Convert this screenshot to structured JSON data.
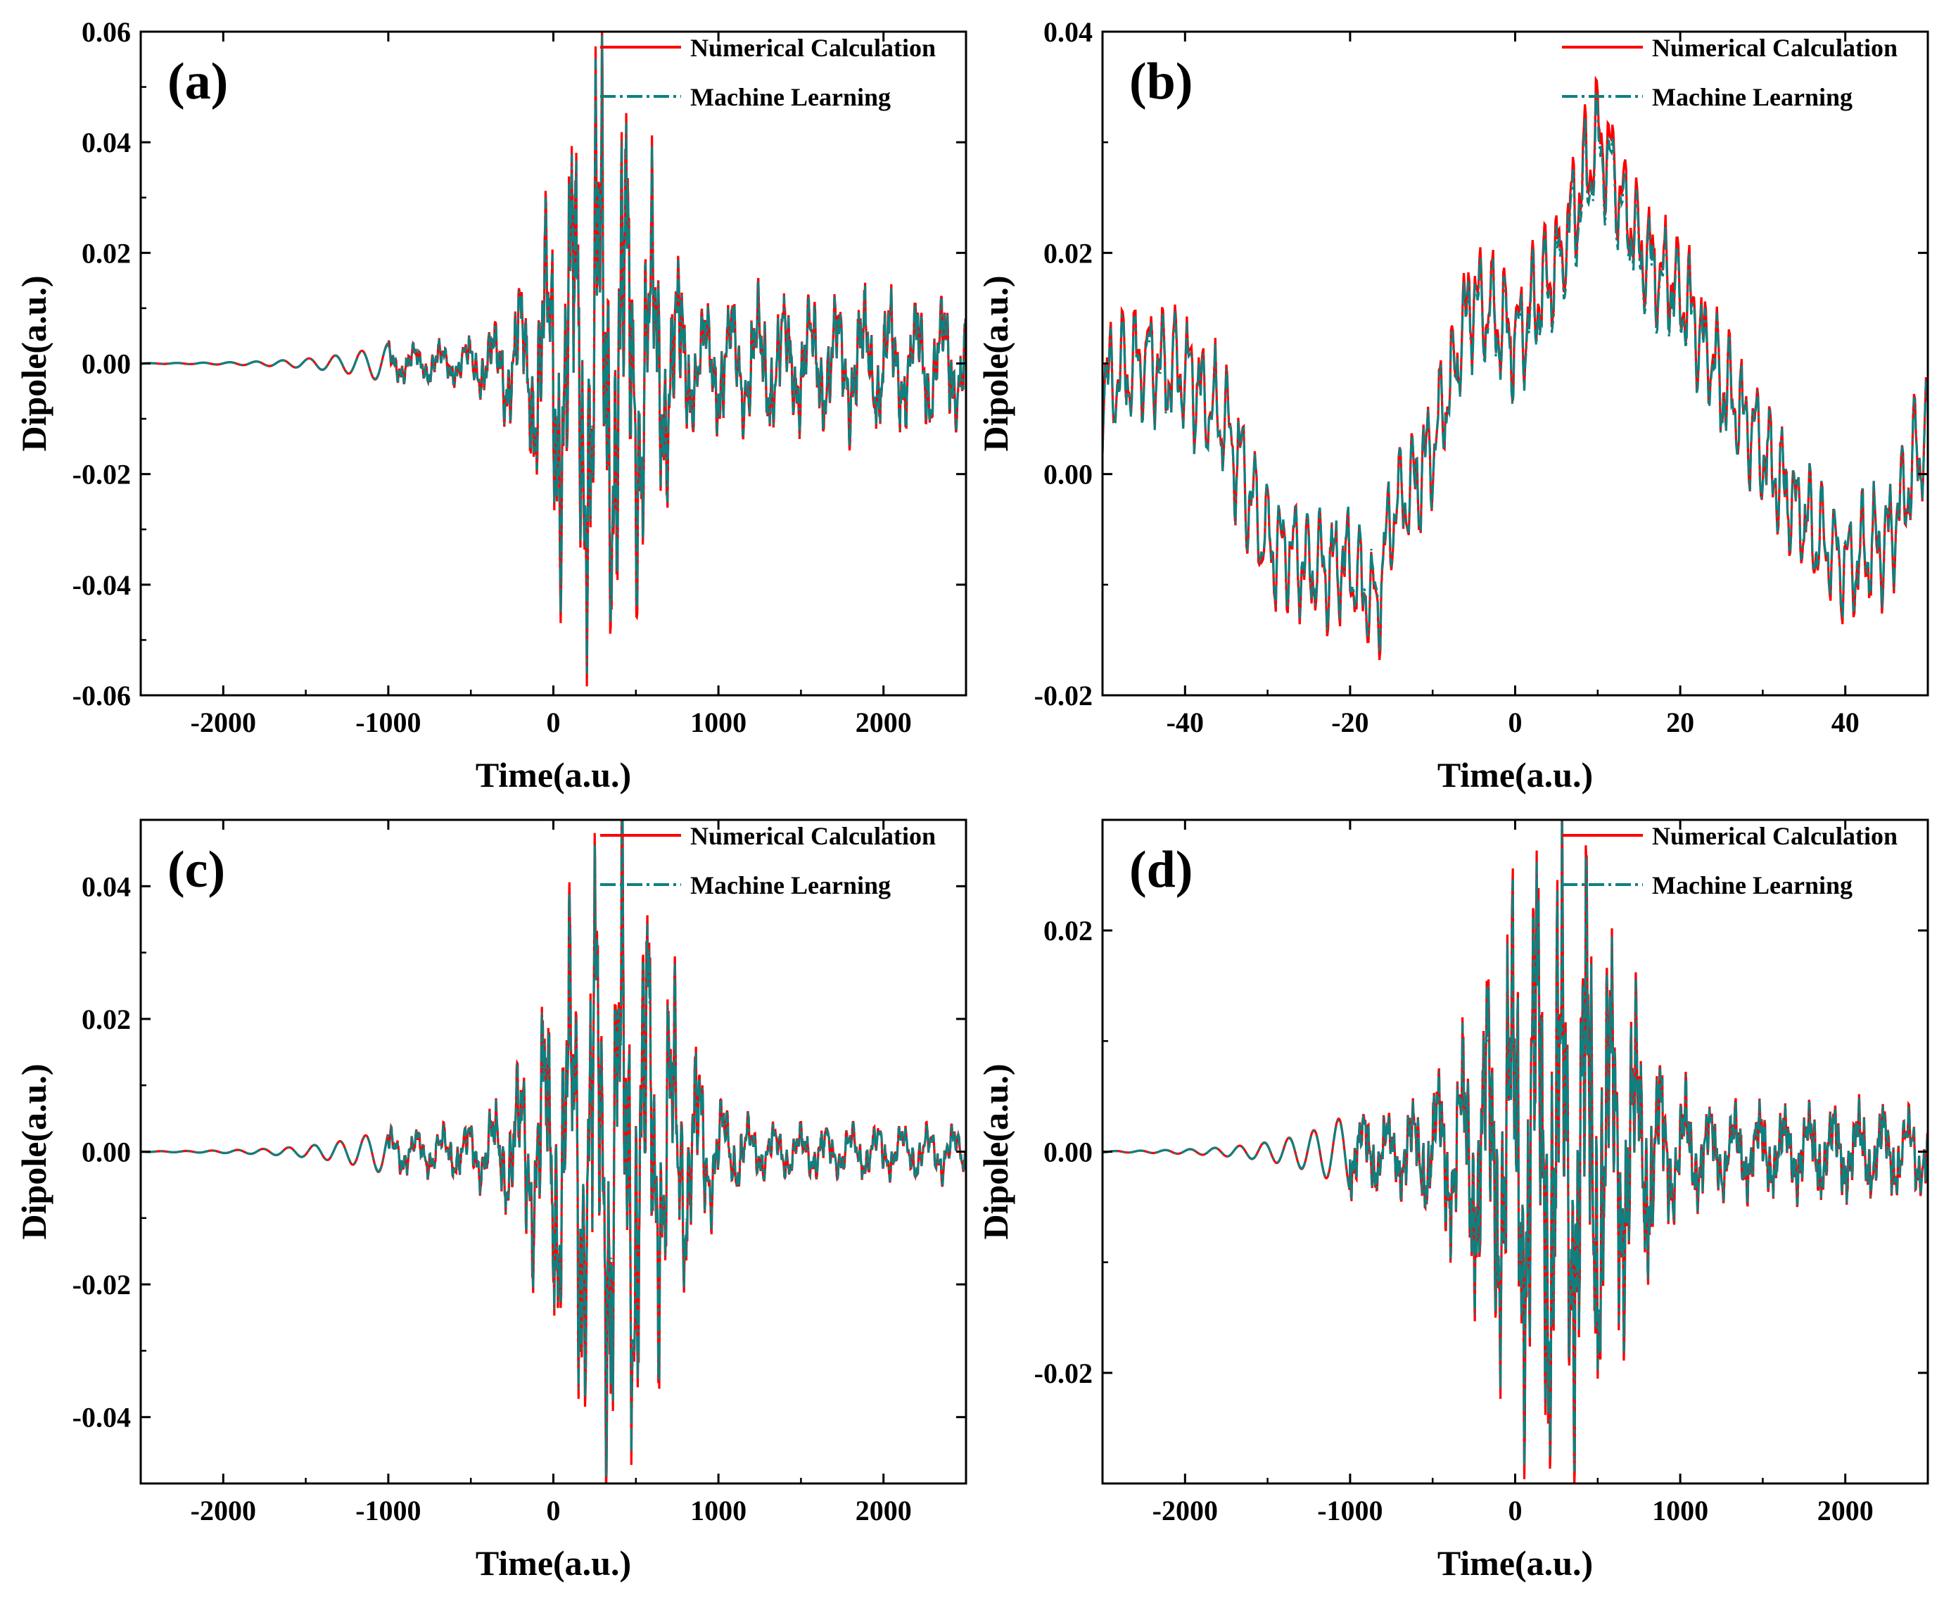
{
  "colors": {
    "numerical": "#ff0000",
    "machine_learning": "#0f8080",
    "axis": "#000000",
    "background": "#ffffff"
  },
  "chart_data": [
    {
      "id": "a",
      "type": "line",
      "label": "(a)",
      "xlabel": "Time(a.u.)",
      "ylabel": "Dipole(a.u.)",
      "xlim": [
        -2500,
        2500
      ],
      "ylim": [
        -0.06,
        0.06
      ],
      "xticks": [
        -2000,
        -1000,
        0,
        1000,
        2000
      ],
      "yticks": [
        -0.06,
        -0.04,
        -0.02,
        0.0,
        0.02,
        0.04,
        0.06
      ],
      "ytick_labels": [
        "-0.06",
        "-0.04",
        "-0.02",
        "0.00",
        "0.02",
        "0.04",
        "0.06"
      ],
      "xtick_labels": [
        "-2000",
        "-1000",
        "0",
        "1000",
        "2000"
      ],
      "grid": false,
      "legend": {
        "position": "top-right",
        "entries": [
          "Numerical Calculation",
          "Machine Learning"
        ]
      },
      "series": [
        {
          "name": "Numerical Calculation",
          "style": "solid"
        },
        {
          "name": "Machine Learning",
          "style": "dash-dot"
        }
      ],
      "envelope": {
        "rise_start": -1000,
        "peak_center": 300,
        "peak_width": 420,
        "peak_amplitude": 0.048,
        "tail_amplitude": 0.012,
        "tail_start": 1000,
        "slow_period": 160,
        "fast_period": 38
      }
    },
    {
      "id": "b",
      "type": "line",
      "label": "(b)",
      "xlabel": "Time(a.u.)",
      "ylabel": "Dipole(a.u.)",
      "xlim": [
        -50,
        50
      ],
      "ylim": [
        -0.02,
        0.04
      ],
      "xticks": [
        -40,
        -20,
        0,
        20,
        40
      ],
      "yticks": [
        -0.02,
        0.0,
        0.02,
        0.04
      ],
      "ytick_labels": [
        "-0.02",
        "0.00",
        "0.02",
        "0.04"
      ],
      "xtick_labels": [
        "-40",
        "-20",
        "0",
        "20",
        "40"
      ],
      "grid": false,
      "legend": {
        "position": "top-right",
        "entries": [
          "Numerical Calculation",
          "Machine Learning"
        ]
      },
      "series": [
        {
          "name": "Numerical Calculation",
          "style": "solid"
        },
        {
          "name": "Machine Learning",
          "style": "dash-dot"
        }
      ],
      "trend": {
        "x": [
          -50,
          -45,
          -40,
          -35,
          -30,
          -25,
          -20,
          -17,
          -15,
          -10,
          -5,
          0,
          5,
          10,
          15,
          20,
          25,
          30,
          35,
          40,
          45,
          50
        ],
        "y": [
          0.008,
          0.01,
          0.009,
          0.004,
          -0.006,
          -0.008,
          -0.008,
          -0.012,
          -0.004,
          0.002,
          0.016,
          0.012,
          0.018,
          0.03,
          0.02,
          0.016,
          0.008,
          0.002,
          -0.004,
          -0.008,
          -0.006,
          0.004
        ]
      }
    },
    {
      "id": "c",
      "type": "line",
      "label": "(c)",
      "xlabel": "Time(a.u.)",
      "ylabel": "Dipole(a.u.)",
      "xlim": [
        -2500,
        2500
      ],
      "ylim": [
        -0.05,
        0.05
      ],
      "xticks": [
        -2000,
        -1000,
        0,
        1000,
        2000
      ],
      "yticks": [
        -0.04,
        -0.02,
        0.0,
        0.02,
        0.04
      ],
      "ytick_labels": [
        "-0.04",
        "-0.02",
        "0.00",
        "0.02",
        "0.04"
      ],
      "xtick_labels": [
        "-2000",
        "-1000",
        "0",
        "1000",
        "2000"
      ],
      "grid": false,
      "legend": {
        "position": "top-right",
        "entries": [
          "Numerical Calculation",
          "Machine Learning"
        ]
      },
      "series": [
        {
          "name": "Numerical Calculation",
          "style": "solid"
        },
        {
          "name": "Machine Learning",
          "style": "dash-dot"
        }
      ],
      "envelope": {
        "rise_start": -1000,
        "peak_center": 350,
        "peak_width": 450,
        "peak_amplitude": 0.042,
        "tail_amplitude": 0.004,
        "tail_start": 1000,
        "slow_period": 155,
        "fast_period": 40
      }
    },
    {
      "id": "d",
      "type": "line",
      "label": "(d)",
      "xlabel": "Time(a.u.)",
      "ylabel": "Dipole(a.u.)",
      "xlim": [
        -2500,
        2500
      ],
      "ylim": [
        -0.03,
        0.03
      ],
      "xticks": [
        -2000,
        -1000,
        0,
        1000,
        2000
      ],
      "yticks": [
        -0.02,
        0.0,
        0.02
      ],
      "ytick_labels": [
        "-0.02",
        "0.00",
        "0.02"
      ],
      "xtick_labels": [
        "-2000",
        "-1000",
        "0",
        "1000",
        "2000"
      ],
      "grid": false,
      "legend": {
        "position": "top-right",
        "entries": [
          "Numerical Calculation",
          "Machine Learning"
        ]
      },
      "series": [
        {
          "name": "Numerical Calculation",
          "style": "solid"
        },
        {
          "name": "Machine Learning",
          "style": "dash-dot"
        }
      ],
      "envelope": {
        "rise_start": -1000,
        "peak_center": 250,
        "peak_width": 500,
        "peak_amplitude": 0.024,
        "tail_amplitude": 0.004,
        "tail_start": 1000,
        "slow_period": 150,
        "fast_period": 30
      }
    }
  ]
}
